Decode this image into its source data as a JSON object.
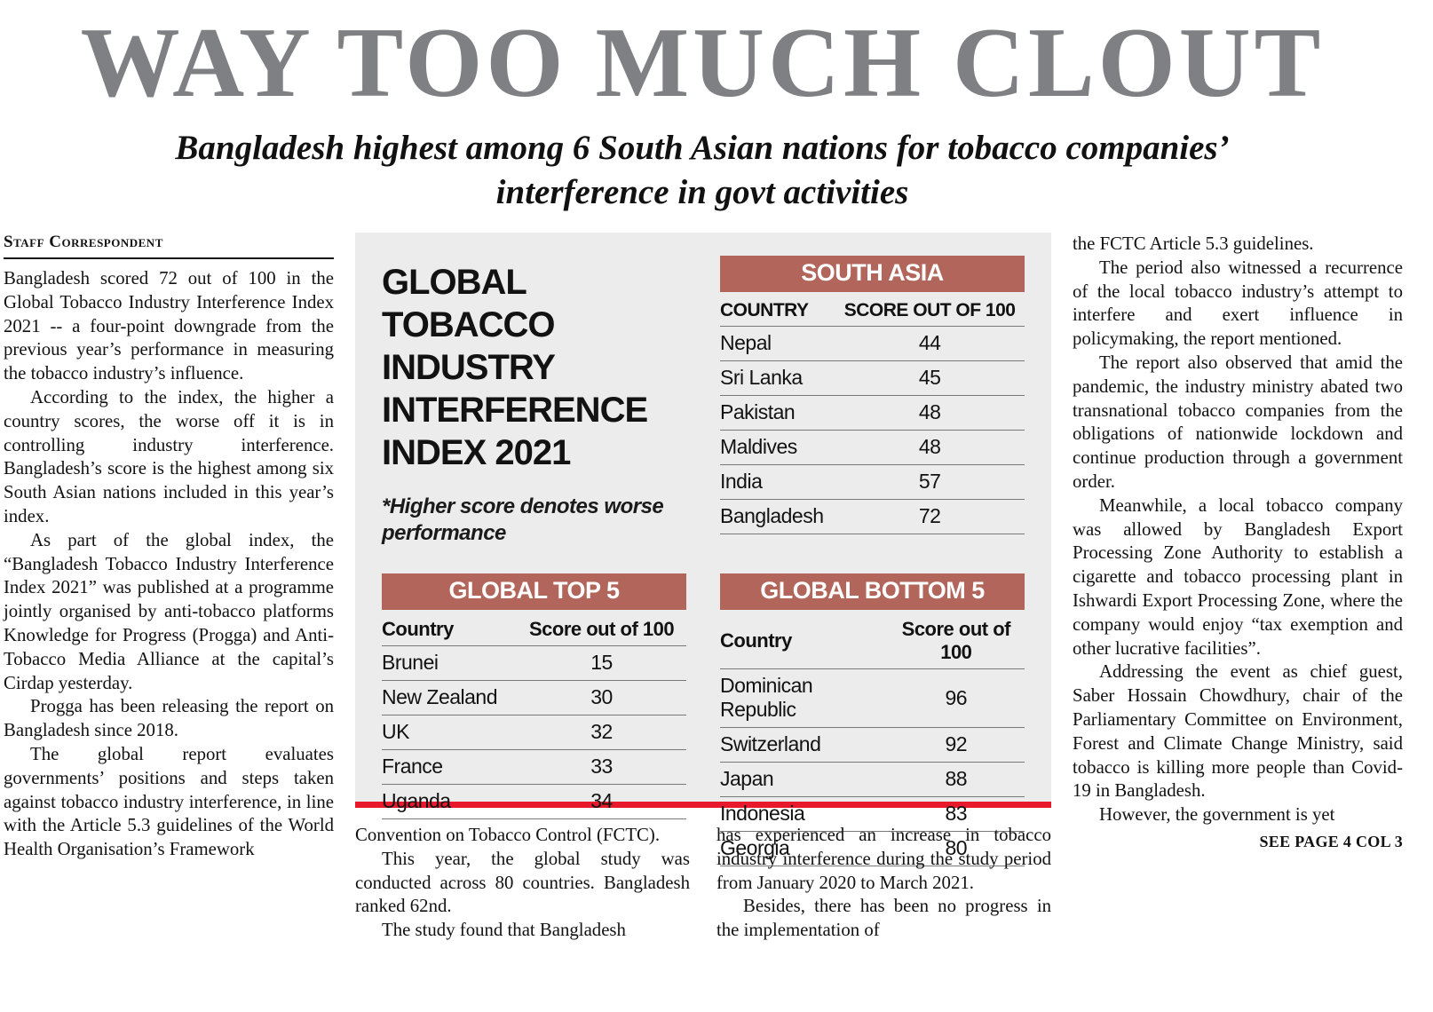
{
  "masthead": {
    "title": "WAY TOO MUCH CLOUT",
    "subtitle": "Bangladesh highest among 6 South Asian nations for tobacco companies’ interference in govt activities"
  },
  "byline": "Staff Correspondent",
  "infographic": {
    "title": "GLOBAL TOBACCO INDUSTRY INTERFERENCE INDEX 2021",
    "note": "*Higher score denotes worse performance",
    "south_asia": {
      "header": "SOUTH ASIA",
      "col_country": "COUNTRY",
      "col_score": "SCORE OUT OF 100",
      "rows": [
        {
          "country": "Nepal",
          "score": "44"
        },
        {
          "country": "Sri Lanka",
          "score": "45"
        },
        {
          "country": "Pakistan",
          "score": "48"
        },
        {
          "country": "Maldives",
          "score": "48"
        },
        {
          "country": "India",
          "score": "57"
        },
        {
          "country": "Bangladesh",
          "score": "72"
        }
      ]
    },
    "global_top5": {
      "header": "GLOBAL TOP 5",
      "col_country": "Country",
      "col_score": "Score out of 100",
      "rows": [
        {
          "country": "Brunei",
          "score": "15"
        },
        {
          "country": "New Zealand",
          "score": "30"
        },
        {
          "country": "UK",
          "score": "32"
        },
        {
          "country": "France",
          "score": "33"
        },
        {
          "country": "Uganda",
          "score": "34"
        }
      ]
    },
    "global_bottom5": {
      "header": "GLOBAL BOTTOM 5",
      "col_country": "Country",
      "col_score": "Score out of 100",
      "rows": [
        {
          "country": "Dominican Republic",
          "score": "96"
        },
        {
          "country": "Switzerland",
          "score": "92"
        },
        {
          "country": "Japan",
          "score": "88"
        },
        {
          "country": "Indonesia",
          "score": "83"
        },
        {
          "country": "Georgia",
          "score": "80"
        }
      ]
    }
  },
  "article": {
    "left_column": [
      "Bangladesh scored 72 out of 100 in the Global Tobacco Industry Interference Index 2021 -- a four-point downgrade from the previous year’s performance in measuring the tobacco industry’s influence.",
      "According to the index, the higher a country scores, the worse off it is in controlling industry interference. Bangladesh’s score is the highest among six South Asian nations included in this year’s index.",
      "As part of the global index, the “Bangladesh Tobacco Industry Interference Index 2021” was published at a programme jointly organised by anti-tobacco platforms Knowledge for Progress (Progga) and Anti-Tobacco Media Alliance at the capital’s Cirdap yesterday.",
      "Progga has been releasing the report on Bangladesh since 2018.",
      "The global report evaluates governments’ positions and steps taken against tobacco industry interference, in line with the Article 5.3 guidelines of the World Health Organisation’s Framework"
    ],
    "center_column_1": [
      "Convention on Tobacco Control (FCTC).",
      "This year, the global study was conducted across 80 countries. Bangladesh ranked 62nd.",
      "The study found that Bangladesh"
    ],
    "center_column_2": [
      "has experienced an increase in tobacco industry interference during the study period from January 2020 to March 2021.",
      "Besides, there has been no progress in the implementation of"
    ],
    "right_column": [
      "the FCTC Article 5.3 guidelines.",
      "The period also witnessed a recurrence of the local tobacco industry’s attempt to interfere and exert influence in policymaking, the report mentioned.",
      "The report also observed that amid the pandemic, the industry ministry abated two transnational tobacco companies from the obligations of nationwide lockdown and continue production through a government order.",
      "Meanwhile, a local tobacco company was allowed by Bangladesh Export Processing Zone Authority to establish a cigarette and tobacco processing plant in Ishwardi Export Processing Zone, where the company would enjoy “tax exemption and other lucrative facilities”.",
      "Addressing the event as chief guest, Saber Hossain Chowdhury, chair of the Parliamentary Committee on Environment, Forest and Climate Change Ministry, said tobacco is killing more people than Covid-19 in Bangladesh.",
      "However, the government is yet"
    ],
    "continuation": "SEE PAGE 4 COL 3"
  },
  "colors": {
    "headline_gray": "#7e8083",
    "table_header_bg": "#b2655b",
    "rule_red": "#e9192d",
    "infographic_bg": "#ececec"
  }
}
